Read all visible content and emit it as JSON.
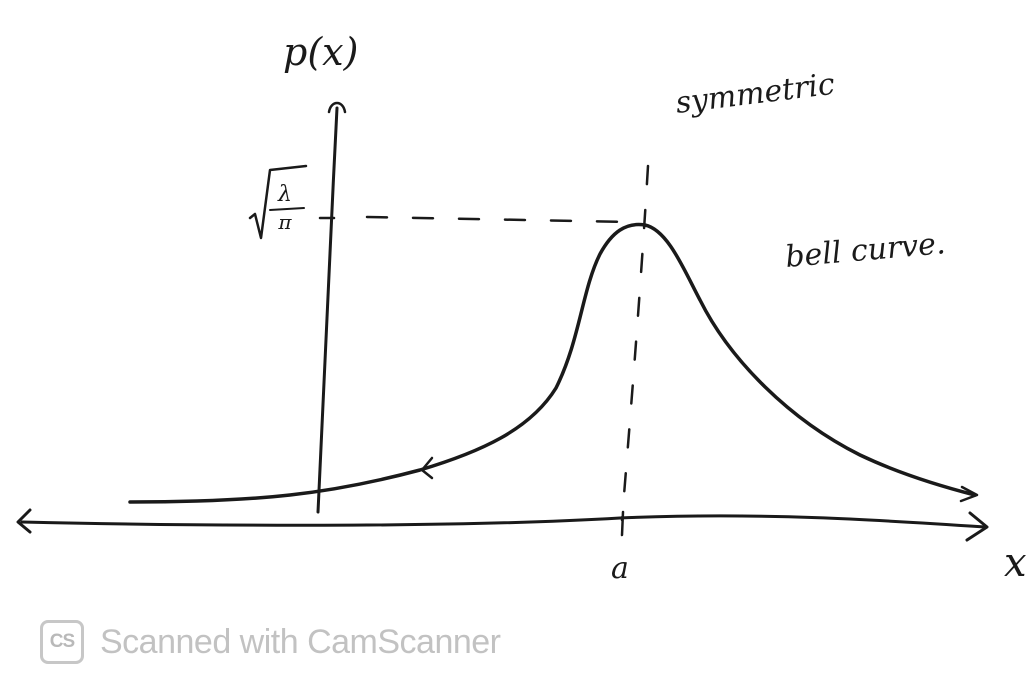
{
  "diagram": {
    "y_axis_label": "p(x)",
    "x_axis_label": "x",
    "peak_label_numerator": "λ",
    "peak_label_denominator": "π",
    "center_label": "a",
    "annotation_symmetric": "symmetric",
    "annotation_bell": "bell curve."
  },
  "watermark": {
    "logo_text": "CS",
    "text": "Scanned with CamScanner"
  }
}
